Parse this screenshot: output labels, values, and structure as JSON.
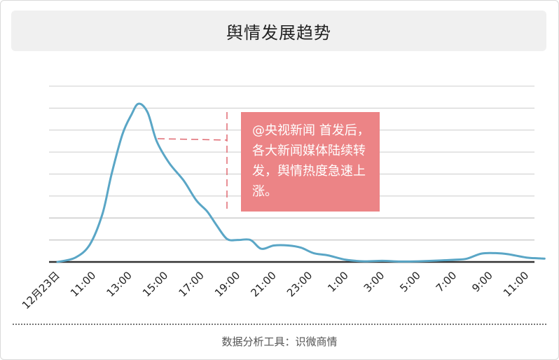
{
  "title": "舆情发展趋势",
  "footer": "数据分析工具：识微商情",
  "annotation": "@央视新闻 首发后，各大新闻媒体陆续转发，舆情热度急速上涨。",
  "colors": {
    "line": "#5aa6c6",
    "annotation_bg": "#ec8486",
    "dash": "#e06a72",
    "grid": "#cccccc",
    "axis": "#333333"
  },
  "chart_data": {
    "type": "line",
    "title": "舆情发展趋势",
    "xlabel": "",
    "ylabel": "",
    "categories": [
      "12月23日",
      "11:00",
      "13:00",
      "15:00",
      "17:00",
      "19:00",
      "21:00",
      "23:00",
      "1:00",
      "3:00",
      "5:00",
      "7:00",
      "9:00",
      "11:00"
    ],
    "x_hours": [
      9,
      11,
      13,
      15,
      17,
      19,
      21,
      23,
      25,
      27,
      29,
      31,
      33,
      35
    ],
    "series": [
      {
        "x": [
          9,
          10,
          10.8,
          11.5,
          12,
          12.6,
          13.1,
          13.5,
          14,
          14.5,
          15.2,
          16,
          16.7,
          17.3,
          17.8,
          18.4,
          19,
          19.7,
          20.3,
          21,
          21.8,
          22.5,
          23.2,
          24,
          25,
          26,
          27,
          28,
          29,
          30,
          31,
          31.7,
          32.5,
          33.3,
          34,
          35,
          35.8,
          36
        ],
        "y": [
          0,
          2,
          8,
          22,
          40,
          58,
          67,
          72,
          68,
          55,
          45,
          37,
          28,
          23,
          17,
          10.5,
          10,
          10,
          6,
          7.5,
          7.5,
          6.5,
          4,
          3,
          1,
          0.3,
          0.5,
          0.2,
          0.3,
          0.6,
          1,
          1.5,
          3.8,
          4,
          3.5,
          2,
          1.6,
          1.5
        ]
      }
    ],
    "ylim": [
      0,
      80
    ],
    "xlim": [
      8.5,
      36.5
    ],
    "grid": true,
    "legend": "none"
  }
}
